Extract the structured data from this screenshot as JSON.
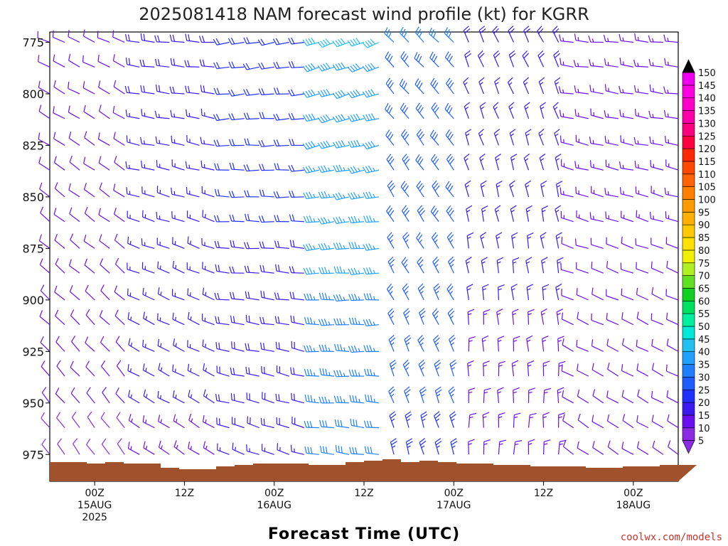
{
  "chart_data": {
    "type": "wind-barb-profile",
    "title": "2025081418 NAM forecast wind profile (kt) for KGRR",
    "xlabel": "Forecast Time (UTC)",
    "ylabel": "",
    "y_ticks": [
      775,
      800,
      825,
      850,
      875,
      900,
      925,
      950,
      975
    ],
    "ylim": [
      988,
      770
    ],
    "x_ticks": [
      {
        "hour": 6,
        "lines": [
          "00Z",
          "15AUG",
          "2025"
        ]
      },
      {
        "hour": 18,
        "lines": [
          "12Z"
        ]
      },
      {
        "hour": 30,
        "lines": [
          "00Z",
          "16AUG"
        ]
      },
      {
        "hour": 42,
        "lines": [
          "12Z"
        ]
      },
      {
        "hour": 54,
        "lines": [
          "00Z",
          "17AUG"
        ]
      },
      {
        "hour": 66,
        "lines": [
          "12Z"
        ]
      },
      {
        "hour": 78,
        "lines": [
          "00Z",
          "18AUG"
        ]
      }
    ],
    "xlim": [
      0,
      84
    ],
    "pressure_levels": [
      775,
      787,
      800,
      812,
      825,
      837,
      850,
      862,
      875,
      887,
      900,
      912,
      925,
      937,
      950,
      962,
      975,
      983
    ],
    "colorbar": {
      "levels": [
        5,
        10,
        15,
        20,
        25,
        30,
        35,
        40,
        45,
        50,
        55,
        60,
        65,
        70,
        75,
        80,
        85,
        90,
        95,
        100,
        105,
        110,
        115,
        120,
        125,
        130,
        135,
        140,
        145,
        150
      ],
      "colors": [
        "#8a2be2",
        "#6a0ff0",
        "#3b1af0",
        "#2030ff",
        "#1e5cff",
        "#1f7fff",
        "#22a0ff",
        "#22c0f0",
        "#00e8d8",
        "#00f0a0",
        "#00e060",
        "#10d020",
        "#60e020",
        "#b0f020",
        "#f0f000",
        "#ffe000",
        "#ffc800",
        "#ffb000",
        "#ff9a00",
        "#ff8000",
        "#ff6400",
        "#ff4800",
        "#ff2800",
        "#ff0040",
        "#ff0080",
        "#ff00a8",
        "#ff00c8",
        "#ff00e0",
        "#f000f0",
        "#000000"
      ]
    },
    "surface_color": "#a0522d",
    "wind_regimes": [
      {
        "hours": [
          0,
          10
        ],
        "direction_deg": 310,
        "speed_kt": [
          8,
          12
        ]
      },
      {
        "hours": [
          10,
          22
        ],
        "direction_deg": 290,
        "speed_kt": [
          12,
          18
        ]
      },
      {
        "hours": [
          22,
          34
        ],
        "direction_deg": 275,
        "speed_kt": [
          14,
          22
        ]
      },
      {
        "hours": [
          34,
          44
        ],
        "direction_deg": 265,
        "speed_kt": [
          25,
          40
        ]
      },
      {
        "hours": [
          44,
          54
        ],
        "direction_deg": 330,
        "speed_kt": [
          20,
          30
        ]
      },
      {
        "hours": [
          54,
          68
        ],
        "direction_deg": 350,
        "speed_kt": [
          10,
          18
        ]
      },
      {
        "hours": [
          68,
          84
        ],
        "direction_deg": 290,
        "speed_kt": [
          8,
          14
        ]
      }
    ]
  },
  "credit": "coolwx.com/models"
}
